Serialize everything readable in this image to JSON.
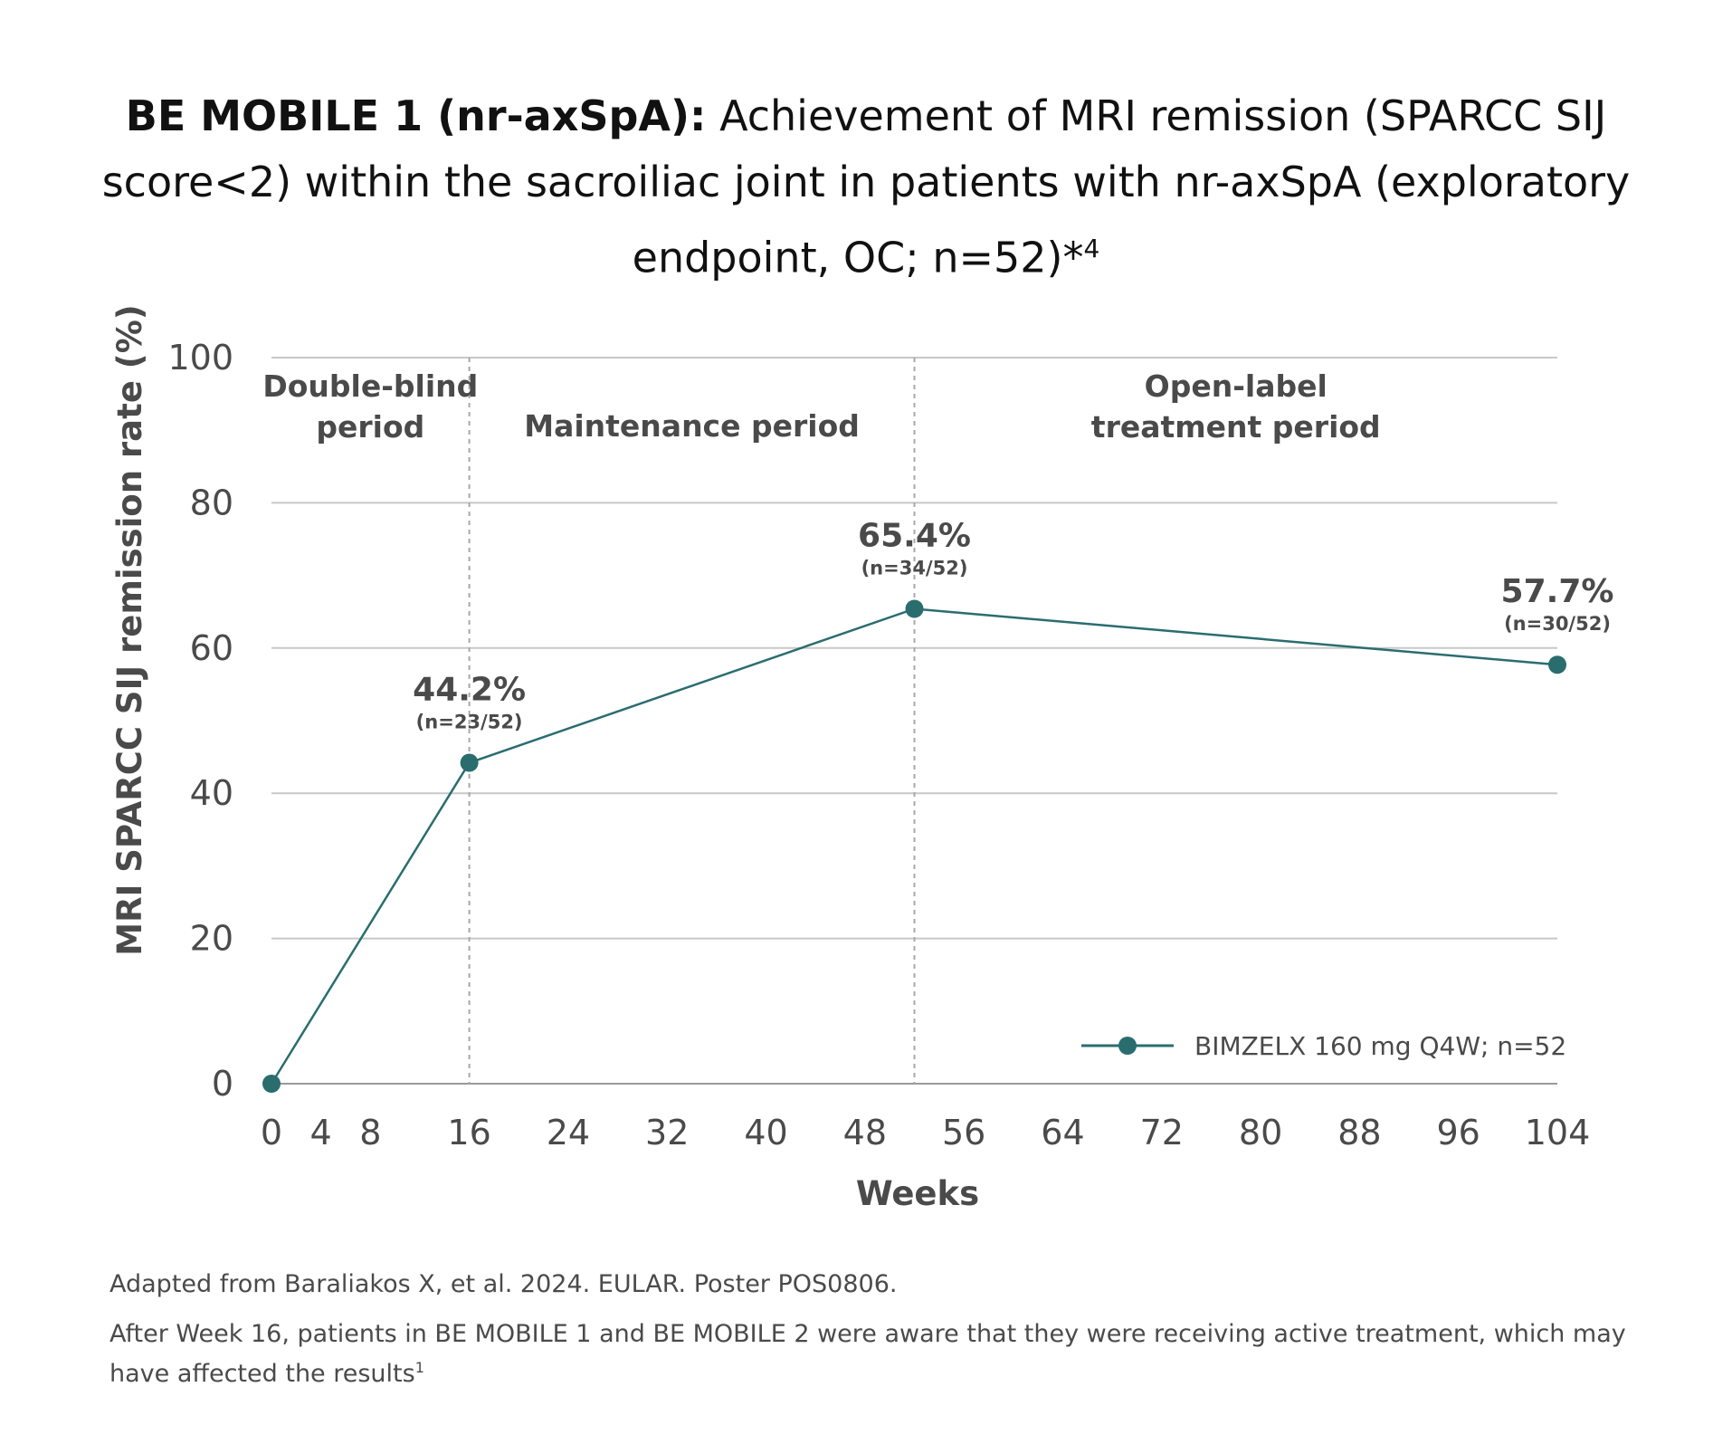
{
  "title": {
    "bold": "BE MOBILE 1 (nr-axSpA):",
    "text": "Achievement of MRI remission (SPARCC SIJ score<2) within the sacroiliac joint in patients with nr-axSpA (exploratory endpoint, OC; n=52)*",
    "sup": "4"
  },
  "chart_data": {
    "type": "line",
    "xlabel": "Weeks",
    "ylabel": "MRI SPARCC SIJ remission rate (%)",
    "xlim": [
      0,
      104
    ],
    "ylim": [
      0,
      100
    ],
    "x_ticks": [
      0,
      4,
      8,
      16,
      24,
      32,
      40,
      48,
      56,
      64,
      72,
      80,
      88,
      96,
      104
    ],
    "y_ticks": [
      0,
      20,
      40,
      60,
      80,
      100
    ],
    "grid": "horizontal",
    "period_dividers": [
      16,
      52
    ],
    "periods": [
      {
        "label": "Double-blind period",
        "lines": [
          "Double-blind",
          "period"
        ],
        "x_center": 8,
        "y_top": 96
      },
      {
        "label": "Maintenance period",
        "lines": [
          "Maintenance period"
        ],
        "x_center": 34,
        "y_top": 90.5
      },
      {
        "label": "Open-label treatment period",
        "lines": [
          "Open-label",
          "treatment period"
        ],
        "x_center": 78,
        "y_top": 96
      }
    ],
    "legend_position": "bottom-right",
    "series": [
      {
        "name": "BIMZELX 160 mg Q4W; n=52",
        "color": "#2a6d6f",
        "points": [
          {
            "x": 0,
            "y": 0
          },
          {
            "x": 16,
            "y": 44.2,
            "label": "44.2%",
            "sublabel": "(n=23/52)"
          },
          {
            "x": 52,
            "y": 65.4,
            "label": "65.4%",
            "sublabel": "(n=34/52)"
          },
          {
            "x": 104,
            "y": 57.7,
            "label": "57.7%",
            "sublabel": "(n=30/52)"
          }
        ]
      }
    ]
  },
  "notes": {
    "source": "Adapted from Baraliakos X, et al. 2024. EULAR. Poster POS0806.",
    "awareness": "After Week 16, patients in BE MOBILE 1 and BE MOBILE 2 were aware that they were receiving active treatment, which may have affected the results",
    "awareness_sup": "1"
  }
}
